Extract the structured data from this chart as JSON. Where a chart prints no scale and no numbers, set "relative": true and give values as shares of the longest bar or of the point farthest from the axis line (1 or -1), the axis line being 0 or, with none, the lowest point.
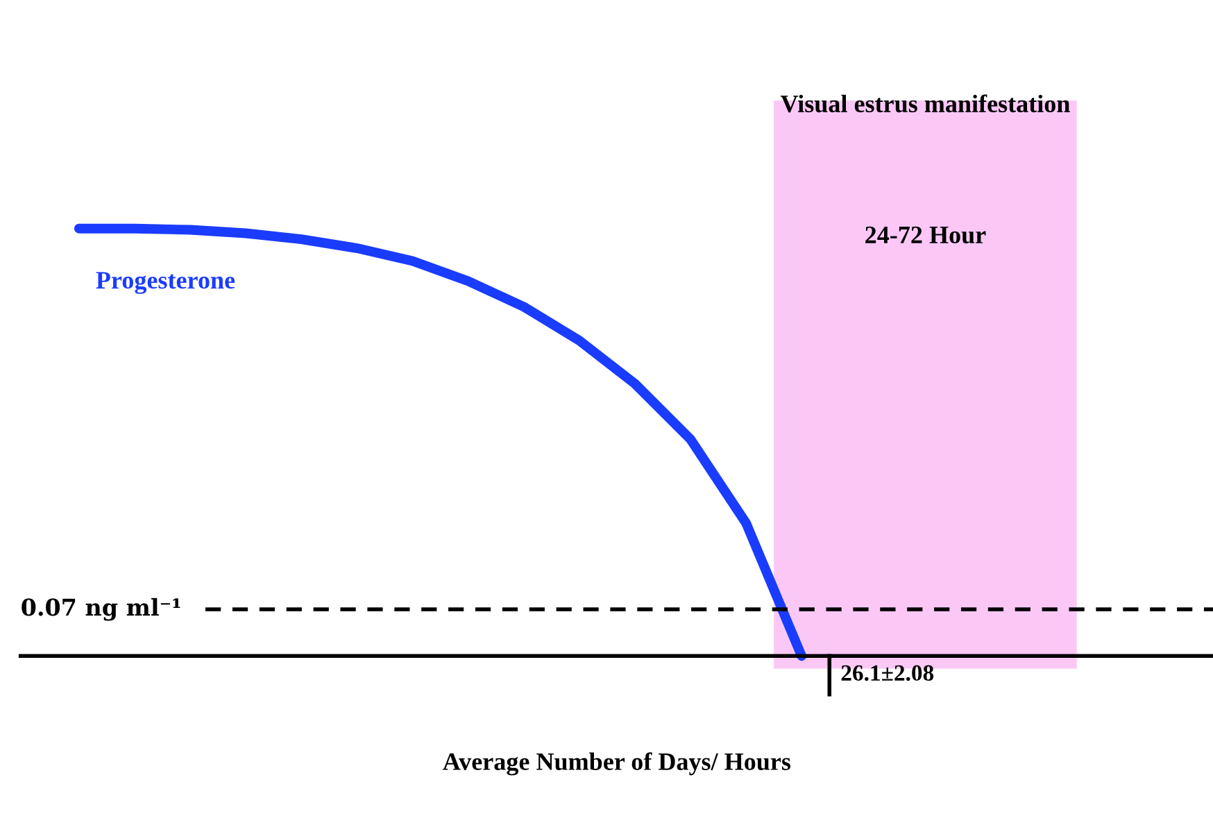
{
  "chart_data": {
    "type": "line",
    "relative": true,
    "xlabel": "Average Number of Days/ Hours",
    "categories": [
      null,
      null,
      null,
      null,
      null,
      null,
      null,
      null,
      null,
      null,
      null,
      null,
      null,
      null,
      null,
      null,
      null,
      null,
      null,
      null,
      null
    ],
    "series": [
      {
        "name": "Progesterone",
        "color": "#1a3cff",
        "values": [
          1,
          1,
          0.997,
          0.989,
          0.975,
          0.954,
          0.924,
          0.877,
          0.817,
          0.738,
          0.637,
          0.507,
          0.311,
          0,
          null,
          null,
          null,
          null,
          null,
          null,
          null
        ]
      }
    ],
    "ref_lines": [
      {
        "axis": "y",
        "value": 0.109,
        "label": "0.07 ng ml⁻¹",
        "color": "#000000",
        "line_style": "dashed"
      }
    ],
    "annotations": [
      "Visual estrus manifestation",
      "24-72 Hour",
      "26.1±2.08"
    ],
    "legend": false,
    "marker": "none",
    "line_style": "solid"
  }
}
